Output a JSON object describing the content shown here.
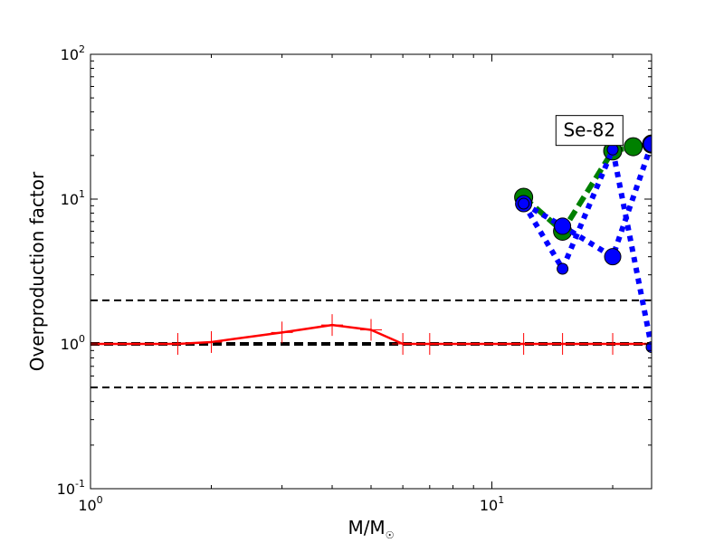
{
  "chart_data": {
    "type": "line",
    "xscale": "log",
    "yscale": "log",
    "xlim": [
      1,
      25
    ],
    "ylim": [
      0.1,
      100
    ],
    "xlabel": {
      "base": "M/M",
      "subscript": "☉"
    },
    "ylabel": "Overproduction factor",
    "x_ticks": [
      {
        "value": 1,
        "base": "10",
        "exp": "0"
      },
      {
        "value": 10,
        "base": "10",
        "exp": "1"
      }
    ],
    "y_ticks": [
      {
        "value": 0.1,
        "base": "10",
        "exp": "-1"
      },
      {
        "value": 1,
        "base": "10",
        "exp": "0"
      },
      {
        "value": 10,
        "base": "10",
        "exp": "1"
      },
      {
        "value": 100,
        "base": "10",
        "exp": "2"
      }
    ],
    "annotation": {
      "text": "Se-82",
      "x": 17.5,
      "y": 30
    },
    "reference_lines": [
      {
        "y": 2,
        "color": "#000000",
        "style": "dashed",
        "width": 2
      },
      {
        "y": 1,
        "color": "#000000",
        "style": "dashed",
        "width": 4
      },
      {
        "y": 0.5,
        "color": "#000000",
        "style": "dashed",
        "width": 2
      }
    ],
    "series": [
      {
        "color": "#ff0000",
        "style": "solid",
        "width": 2.5,
        "marker": "plus",
        "x": [
          1,
          1.65,
          2,
          3,
          4,
          5,
          6,
          7,
          12,
          15,
          20,
          25
        ],
        "y": [
          1,
          1,
          1.03,
          1.2,
          1.35,
          1.25,
          1,
          1,
          1,
          1,
          1,
          1
        ]
      },
      {
        "color": "#008000",
        "style": "dashed",
        "width": 6,
        "marker": "circle",
        "marker_size": 10,
        "x": [
          12,
          15,
          20,
          22.5,
          25
        ],
        "y": [
          10.3,
          6,
          21.5,
          23,
          24
        ]
      },
      {
        "color": "#0000ff",
        "style": "dotted",
        "width": 6,
        "marker": "circle",
        "marker_size": 9,
        "x": [
          12,
          15,
          20,
          25
        ],
        "y": [
          9.3,
          6.5,
          4,
          24
        ]
      },
      {
        "color": "#0000ff",
        "style": "dotted",
        "width": 6,
        "marker": "circle",
        "marker_size": 6,
        "x": [
          12,
          15,
          20,
          25
        ],
        "y": [
          9.3,
          3.3,
          22,
          0.95
        ]
      }
    ]
  }
}
